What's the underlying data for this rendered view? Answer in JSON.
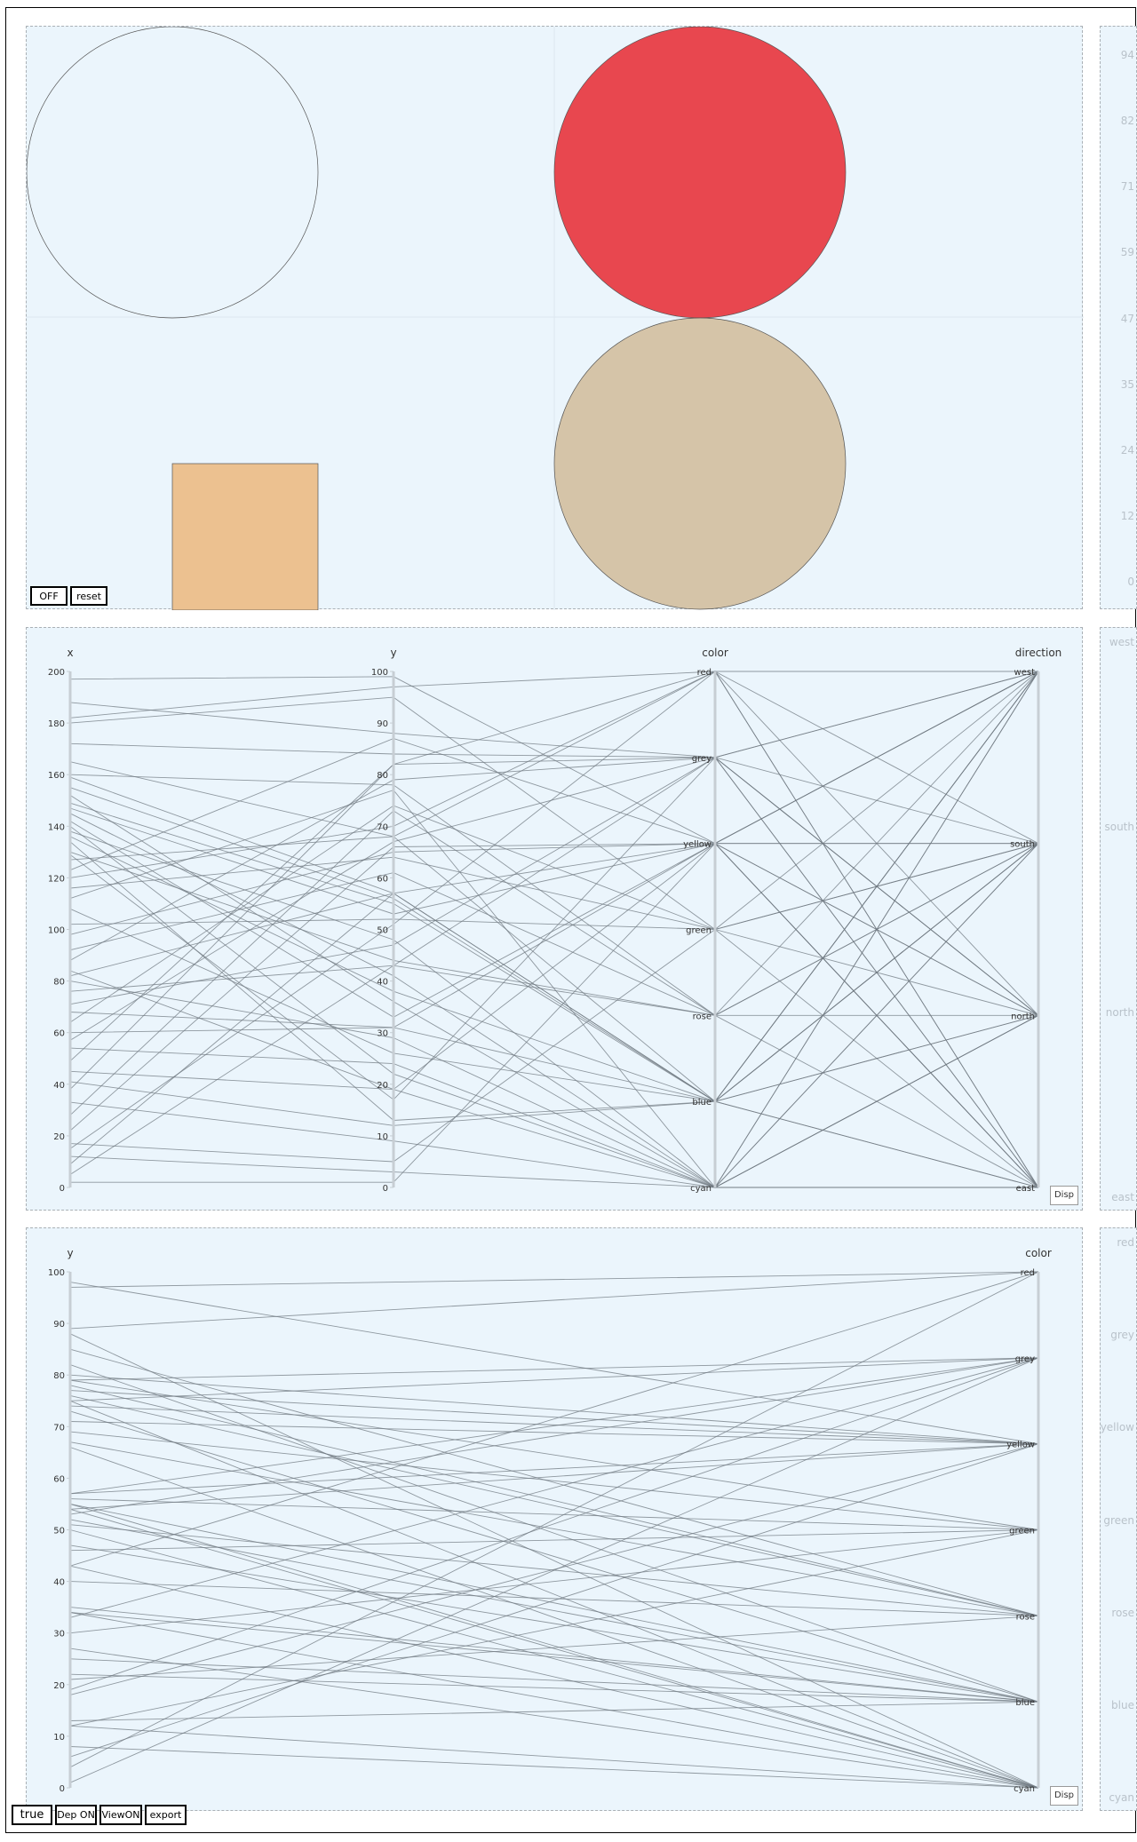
{
  "colors": {
    "panel_bg": "#ebf5fc",
    "circle_red": "#e8474f",
    "circle_tan": "#d5c4a8",
    "square_orange": "#ecc190",
    "line": "#6f7880"
  },
  "top_controls": {
    "off": "OFF",
    "reset": "reset"
  },
  "bottom_controls": {
    "true_label": "true",
    "dep": "Dep ON",
    "view": "ViewON",
    "export": "export"
  },
  "disp_label": "Disp",
  "side_top_labels": [
    "94",
    "82",
    "71",
    "59",
    "47",
    "35",
    "24",
    "12",
    "0"
  ],
  "side_mid_labels": [
    "west",
    "south",
    "north",
    "east"
  ],
  "side_bottom_labels": [
    "red",
    "grey",
    "yellow",
    "green",
    "rose",
    "blue",
    "cyan"
  ],
  "chart_data": [
    {
      "type": "parallel_coordinates",
      "axes": [
        {
          "name": "x",
          "range": [
            0,
            200
          ],
          "ticks": [
            "0",
            "20",
            "40",
            "60",
            "80",
            "100",
            "120",
            "140",
            "160",
            "180",
            "200"
          ]
        },
        {
          "name": "y",
          "range": [
            0,
            100
          ],
          "ticks": [
            "0",
            "10",
            "20",
            "30",
            "40",
            "50",
            "60",
            "70",
            "80",
            "90",
            "100"
          ]
        },
        {
          "name": "color",
          "categories": [
            "red",
            "grey",
            "yellow",
            "green",
            "rose",
            "blue",
            "cyan"
          ]
        },
        {
          "name": "direction",
          "categories": [
            "west",
            "south",
            "north",
            "east"
          ]
        }
      ],
      "records": [
        [
          197,
          99,
          "yellow",
          "south"
        ],
        [
          188,
          88,
          "grey",
          "north"
        ],
        [
          182,
          97,
          "red",
          "east"
        ],
        [
          180,
          95,
          "green",
          "west"
        ],
        [
          172,
          84,
          "grey",
          "north"
        ],
        [
          165,
          68,
          "blue",
          "east"
        ],
        [
          160,
          78,
          "rose",
          "south"
        ],
        [
          159,
          57,
          "yellow",
          "north"
        ],
        [
          155,
          56,
          "blue",
          "west"
        ],
        [
          152,
          36,
          "cyan",
          "east"
        ],
        [
          149,
          55,
          "blue",
          "south"
        ],
        [
          147,
          53,
          "yellow",
          "west"
        ],
        [
          145,
          41,
          "cyan",
          "west"
        ],
        [
          142,
          33,
          "yellow",
          "north"
        ],
        [
          140,
          22,
          "cyan",
          "east"
        ],
        [
          138,
          48,
          "cyan",
          "north"
        ],
        [
          136,
          38,
          "blue",
          "south"
        ],
        [
          134,
          13,
          "blue",
          "north"
        ],
        [
          130,
          44,
          "rose",
          "west"
        ],
        [
          129,
          17,
          "grey",
          "east"
        ],
        [
          127,
          68,
          "red",
          "east"
        ],
        [
          123,
          87,
          "yellow",
          "west"
        ],
        [
          120,
          70,
          "red",
          "south"
        ],
        [
          116,
          64,
          "green",
          "east"
        ],
        [
          112,
          77,
          "cyan",
          "north"
        ],
        [
          108,
          26,
          "blue",
          "west"
        ],
        [
          102,
          52,
          "green",
          "south"
        ],
        [
          98,
          65,
          "yellow",
          "east"
        ],
        [
          92,
          61,
          "rose",
          "north"
        ],
        [
          88,
          79,
          "grey",
          "south"
        ],
        [
          84,
          19,
          "cyan",
          "south"
        ],
        [
          82,
          57,
          "blue",
          "east"
        ],
        [
          80,
          29,
          "cyan",
          "west"
        ],
        [
          76,
          43,
          "rose",
          "east"
        ],
        [
          71,
          47,
          "grey",
          "west"
        ],
        [
          68,
          31,
          "yellow",
          "south"
        ],
        [
          64,
          74,
          "green",
          "north"
        ],
        [
          60,
          31,
          "blue",
          "north"
        ],
        [
          57,
          67,
          "grey",
          "east"
        ],
        [
          54,
          24,
          "cyan",
          "south"
        ],
        [
          49,
          82,
          "red",
          "north"
        ],
        [
          45,
          19,
          "yellow",
          "east"
        ],
        [
          41,
          12,
          "blue",
          "west"
        ],
        [
          38,
          82,
          "grey",
          "north"
        ],
        [
          33,
          9,
          "cyan",
          "east"
        ],
        [
          28,
          73,
          "rose",
          "south"
        ],
        [
          22,
          66,
          "yellow",
          "west"
        ],
        [
          17,
          5,
          "green",
          "south"
        ],
        [
          15,
          51,
          "red",
          "west"
        ],
        [
          12,
          3,
          "cyan",
          "north"
        ],
        [
          9,
          57,
          "blue",
          "south"
        ],
        [
          5,
          43,
          "grey",
          "west"
        ],
        [
          2,
          1,
          "yellow",
          "east"
        ]
      ]
    },
    {
      "type": "parallel_coordinates",
      "axes": [
        {
          "name": "y",
          "range": [
            0,
            100
          ],
          "ticks": [
            "0",
            "10",
            "20",
            "30",
            "40",
            "50",
            "60",
            "70",
            "80",
            "90",
            "100"
          ]
        },
        {
          "name": "color",
          "categories": [
            "red",
            "grey",
            "yellow",
            "green",
            "rose",
            "blue",
            "cyan"
          ]
        }
      ],
      "records": [
        [
          98,
          "yellow"
        ],
        [
          97,
          "red"
        ],
        [
          89,
          "red"
        ],
        [
          88,
          "cyan"
        ],
        [
          85,
          "rose"
        ],
        [
          82,
          "blue"
        ],
        [
          80,
          "yellow"
        ],
        [
          79,
          "grey"
        ],
        [
          79,
          "green"
        ],
        [
          78,
          "rose"
        ],
        [
          77,
          "yellow"
        ],
        [
          76,
          "rose"
        ],
        [
          75,
          "grey"
        ],
        [
          75,
          "cyan"
        ],
        [
          74,
          "yellow"
        ],
        [
          73,
          "blue"
        ],
        [
          71,
          "yellow"
        ],
        [
          69,
          "green"
        ],
        [
          67,
          "rose"
        ],
        [
          66,
          "cyan"
        ],
        [
          57,
          "grey"
        ],
        [
          57,
          "yellow"
        ],
        [
          56,
          "green"
        ],
        [
          55,
          "cyan"
        ],
        [
          55,
          "blue"
        ],
        [
          54,
          "cyan"
        ],
        [
          54,
          "yellow"
        ],
        [
          53,
          "grey"
        ],
        [
          52,
          "blue"
        ],
        [
          51,
          "rose"
        ],
        [
          50,
          "cyan"
        ],
        [
          47,
          "blue"
        ],
        [
          46,
          "green"
        ],
        [
          43,
          "red"
        ],
        [
          43,
          "cyan"
        ],
        [
          40,
          "rose"
        ],
        [
          35,
          "blue"
        ],
        [
          34,
          "cyan"
        ],
        [
          34,
          "blue"
        ],
        [
          33,
          "grey"
        ],
        [
          30,
          "green"
        ],
        [
          27,
          "cyan"
        ],
        [
          25,
          "blue"
        ],
        [
          22,
          "blue"
        ],
        [
          21,
          "rose"
        ],
        [
          19,
          "grey"
        ],
        [
          18,
          "yellow"
        ],
        [
          13,
          "blue"
        ],
        [
          12,
          "cyan"
        ],
        [
          12,
          "green"
        ],
        [
          8,
          "cyan"
        ],
        [
          6,
          "yellow"
        ],
        [
          4,
          "red"
        ],
        [
          1,
          "grey"
        ]
      ]
    }
  ]
}
